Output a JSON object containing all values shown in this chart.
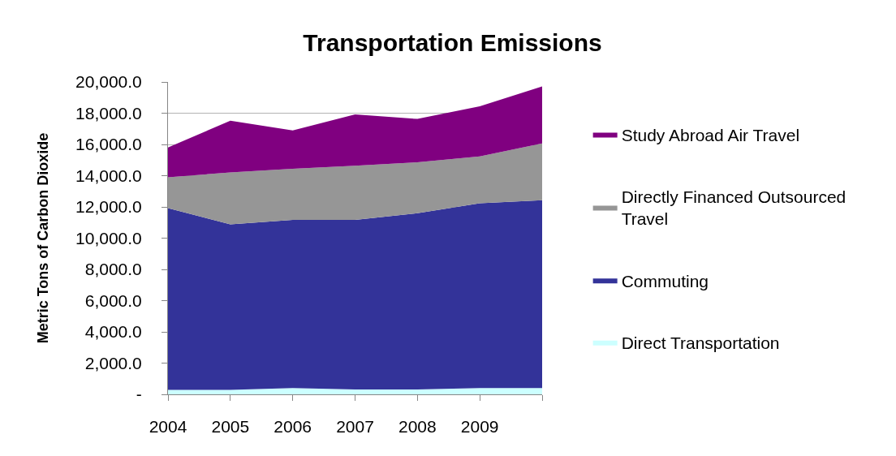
{
  "chart_data": {
    "type": "area",
    "stacked": true,
    "title": "Transportation Emissions",
    "ylabel": "Metric Tons of Carbon Dioxide",
    "categories": [
      "2004",
      "2005",
      "2006",
      "2007",
      "2008",
      "2009",
      null
    ],
    "series": [
      {
        "name": "Direct Transportation",
        "color": "#ccffff",
        "values": [
          280,
          280,
          400,
          310,
          310,
          400,
          400
        ]
      },
      {
        "name": "Commuting",
        "color": "#333399",
        "values": [
          11640,
          10600,
          10770,
          10860,
          11290,
          11830,
          12030
        ]
      },
      {
        "name": "Directly Financed Outsourced Travel",
        "color": "#969696",
        "values": [
          1970,
          3330,
          3270,
          3460,
          3260,
          3010,
          3640
        ]
      },
      {
        "name": "Study Abroad Air Travel",
        "color": "#800080",
        "values": [
          1920,
          3310,
          2460,
          3290,
          2770,
          3200,
          3640
        ]
      }
    ],
    "ylim": [
      0,
      20000
    ],
    "yticks": [
      {
        "value": 0,
        "label": "-"
      },
      {
        "value": 2000,
        "label": "2,000.0"
      },
      {
        "value": 4000,
        "label": "4,000.0"
      },
      {
        "value": 6000,
        "label": "6,000.0"
      },
      {
        "value": 8000,
        "label": "8,000.0"
      },
      {
        "value": 10000,
        "label": "10,000.0"
      },
      {
        "value": 12000,
        "label": "12,000.0"
      },
      {
        "value": 14000,
        "label": "14,000.0"
      },
      {
        "value": 16000,
        "label": "16,000.0"
      },
      {
        "value": 18000,
        "label": "18,000.0"
      },
      {
        "value": 20000,
        "label": "20,000.0"
      }
    ],
    "grid": "y",
    "legend": "right",
    "marker": "none"
  }
}
